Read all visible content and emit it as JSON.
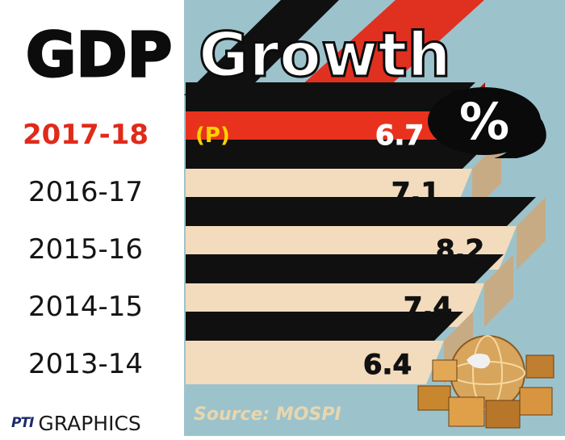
{
  "chart_data": {
    "type": "bar",
    "title_part1": "GDP",
    "title_part2": "Growth",
    "unit_symbol": "%",
    "categories": [
      "2017-18",
      "2016-17",
      "2015-16",
      "2014-15",
      "2013-14"
    ],
    "values": [
      6.7,
      7.1,
      8.2,
      7.4,
      6.4
    ],
    "value_labels": [
      "6.7",
      "7.1",
      "8.2",
      "7.4",
      "6.4"
    ],
    "highlight": {
      "category": "2017-18",
      "tag": "(P)",
      "color": "#e8321e"
    },
    "source": "Source: MOSPI",
    "colors": {
      "panel": "#9cc3cc",
      "bar": "#f2dcbd",
      "bar_side": "#c7ab85",
      "shadow": "#101010",
      "highlight": "#e8321e",
      "highlight_label": "#ffd200",
      "title": "#0c0c0c",
      "year_highlight": "#e02a1a"
    }
  },
  "credit": {
    "logo": "PTI",
    "text": "GRAPHICS"
  }
}
